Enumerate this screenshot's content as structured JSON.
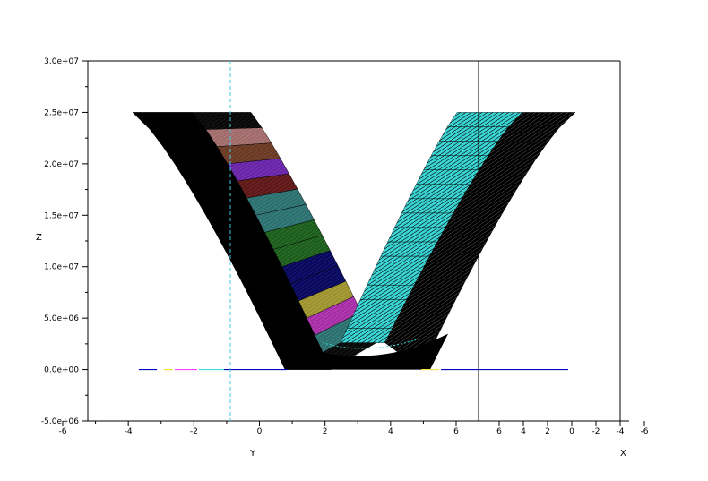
{
  "chart_data": {
    "type": "surface",
    "title": "",
    "xlabel": "X",
    "ylabel": "Y",
    "zlabel": "Z",
    "z_ticks": [
      "-5.0e+06",
      "0.0e+00",
      "5.0e+06",
      "1.0e+07",
      "1.5e+07",
      "2.0e+07",
      "2.5e+07",
      "3.0e+07"
    ],
    "z_values": [
      -5000000,
      0,
      5000000,
      10000000,
      15000000,
      20000000,
      25000000,
      30000000
    ],
    "zlim": [
      -5000000,
      30000000
    ],
    "y_ticks": [
      "-6",
      "-4",
      "-2",
      "0",
      "2",
      "4",
      "6"
    ],
    "y_values": [
      -6,
      -4,
      -2,
      0,
      2,
      4,
      6
    ],
    "x_ticks": [
      "6",
      "4",
      "2",
      "0",
      "-2",
      "-4",
      "-6"
    ],
    "x_values": [
      6,
      4,
      2,
      0,
      -2,
      -4,
      -6
    ],
    "surface": {
      "function": "parabolic trough",
      "z_max": 25000000,
      "z_min": 0
    },
    "colors": {
      "black": "#000000",
      "salmon": "#f4a0a0",
      "brown": "#a0522d",
      "purple": "#9b30ff",
      "maroon": "#8b1a1a",
      "teal": "#3aa8a8",
      "green": "#228b22",
      "navy": "#00008b",
      "yellow": "#f0e040",
      "magenta": "#ff40ff",
      "cyan": "#40e0e0",
      "blue": "#0000c0",
      "dashed_line": "#40c8e8"
    }
  }
}
